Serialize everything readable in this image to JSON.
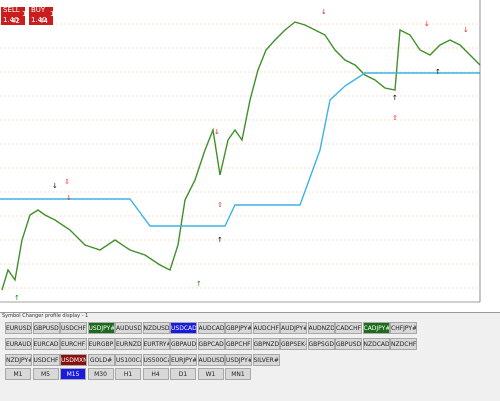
{
  "trade_panel": {
    "sell_label": "SELL",
    "sell_price_small": "1.40",
    "sell_price_big": "42",
    "sell_price_sup": "1",
    "buy_label": "BUY",
    "buy_price_small": "1.40",
    "buy_price_big": "44",
    "buy_price_sup": "1"
  },
  "panel_title": "Symbol Changer profile display - 1",
  "symbol_rows": [
    [
      "EURUSD",
      "GBPUSD",
      "USDCHF",
      {
        "label": "USDJPY#",
        "color": "#1e6b1e"
      },
      "AUDUSD#",
      "NZDUSD#",
      {
        "label": "USDCAD#",
        "color": "#1a1ae0"
      },
      "AUDCAD#",
      "GBPJPY#",
      "AUDCHF#",
      "AUDJPY#",
      "AUDNZD#",
      "CADCHF#",
      {
        "label": "CADJPY#",
        "color": "#1e6b1e"
      },
      "CHFJPY#"
    ],
    [
      "EURAUD#",
      "EURCAD#",
      "EURCHF#",
      "EURGBP#",
      "EURNZD#",
      "EURTRY#",
      "GBPAUD#",
      "GBPCAD#",
      "GBPCHF#",
      "GBPNZD#",
      "GBPSEK#",
      "GBPSGD#",
      "GBPUSD#",
      "NZDCAD#",
      "NZDCHF#"
    ],
    [
      "NZDJPY#",
      "USDCHF#",
      {
        "label": "USDMXN#",
        "color": "#8a1010"
      },
      "GOLD#",
      "US100Cash",
      "US500Cash",
      "EURJPY#",
      "AUDUSD#",
      "USDJPY#",
      "SILVER#"
    ]
  ],
  "timeframes": [
    "M1",
    "M5",
    {
      "label": "M15",
      "color": "#1a1ae0"
    },
    "M30",
    "H1",
    "H4",
    "D1",
    "W1",
    "MN1"
  ]
}
